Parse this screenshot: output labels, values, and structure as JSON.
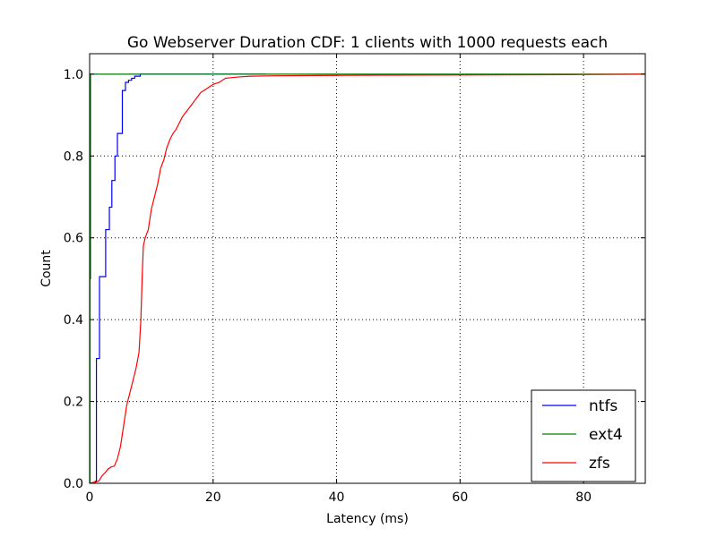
{
  "chart_data": {
    "type": "line",
    "title": "Go Webserver Duration CDF: 1 clients with 1000 requests each",
    "xlabel": "Latency (ms)",
    "ylabel": "Count",
    "xlim": [
      0,
      90
    ],
    "ylim": [
      0,
      1.05
    ],
    "xticks": [
      0,
      20,
      40,
      60,
      80
    ],
    "yticks": [
      0.0,
      0.2,
      0.4,
      0.6,
      0.8,
      1.0
    ],
    "xtick_labels": [
      "0",
      "20",
      "40",
      "60",
      "80"
    ],
    "ytick_labels": [
      "0.0",
      "0.2",
      "0.4",
      "0.6",
      "0.8",
      "1.0"
    ],
    "grid": true,
    "legend_position": "lower-right",
    "series": [
      {
        "name": "ntfs",
        "color": "#0000ff",
        "step": true,
        "points": [
          [
            0.9,
            0
          ],
          [
            0.9,
            0.005
          ],
          [
            1.1,
            0.005
          ],
          [
            1.1,
            0.305
          ],
          [
            1.6,
            0.305
          ],
          [
            1.6,
            0.505
          ],
          [
            2.6,
            0.505
          ],
          [
            2.6,
            0.62
          ],
          [
            3.2,
            0.62
          ],
          [
            3.2,
            0.675
          ],
          [
            3.6,
            0.675
          ],
          [
            3.6,
            0.74
          ],
          [
            4.1,
            0.74
          ],
          [
            4.1,
            0.8
          ],
          [
            4.5,
            0.8
          ],
          [
            4.5,
            0.855
          ],
          [
            5.3,
            0.855
          ],
          [
            5.3,
            0.96
          ],
          [
            5.8,
            0.96
          ],
          [
            5.8,
            0.98
          ],
          [
            6.3,
            0.98
          ],
          [
            6.3,
            0.985
          ],
          [
            6.8,
            0.985
          ],
          [
            6.8,
            0.99
          ],
          [
            7.3,
            0.99
          ],
          [
            7.3,
            0.995
          ],
          [
            8.2,
            0.995
          ],
          [
            8.2,
            1.0
          ],
          [
            28.5,
            1.0
          ]
        ]
      },
      {
        "name": "ext4",
        "color": "#008000",
        "step": true,
        "points": [
          [
            0.05,
            0
          ],
          [
            0.05,
            0.5
          ],
          [
            0.15,
            0.5
          ],
          [
            0.15,
            1.0
          ],
          [
            0.3,
            1.0
          ],
          [
            90,
            1.0
          ]
        ]
      },
      {
        "name": "zfs",
        "color": "#ff0000",
        "step": false,
        "points": [
          [
            0,
            0
          ],
          [
            0.5,
            0.002
          ],
          [
            1,
            0.003
          ],
          [
            1.5,
            0.006
          ],
          [
            2,
            0.018
          ],
          [
            2.5,
            0.026
          ],
          [
            3,
            0.035
          ],
          [
            3.5,
            0.04
          ],
          [
            4,
            0.042
          ],
          [
            4.5,
            0.06
          ],
          [
            5,
            0.09
          ],
          [
            5.5,
            0.14
          ],
          [
            6,
            0.19
          ],
          [
            6.5,
            0.22
          ],
          [
            7,
            0.25
          ],
          [
            7.5,
            0.28
          ],
          [
            8,
            0.32
          ],
          [
            8.3,
            0.4
          ],
          [
            8.5,
            0.5
          ],
          [
            8.7,
            0.58
          ],
          [
            9,
            0.6
          ],
          [
            9.5,
            0.62
          ],
          [
            10,
            0.67
          ],
          [
            10.5,
            0.7
          ],
          [
            11,
            0.73
          ],
          [
            11.5,
            0.77
          ],
          [
            12,
            0.79
          ],
          [
            12.5,
            0.82
          ],
          [
            13,
            0.84
          ],
          [
            13.5,
            0.855
          ],
          [
            14,
            0.865
          ],
          [
            14.5,
            0.88
          ],
          [
            15,
            0.895
          ],
          [
            15.5,
            0.905
          ],
          [
            16,
            0.915
          ],
          [
            16.5,
            0.925
          ],
          [
            17,
            0.935
          ],
          [
            17.5,
            0.945
          ],
          [
            18,
            0.955
          ],
          [
            18.5,
            0.96
          ],
          [
            19,
            0.965
          ],
          [
            19.5,
            0.97
          ],
          [
            20,
            0.975
          ],
          [
            21,
            0.98
          ],
          [
            22,
            0.99
          ],
          [
            24,
            0.993
          ],
          [
            26,
            0.995
          ],
          [
            30,
            0.996
          ],
          [
            40,
            0.997
          ],
          [
            60,
            0.998
          ],
          [
            80,
            0.999
          ],
          [
            90,
            1.0
          ]
        ]
      }
    ]
  }
}
